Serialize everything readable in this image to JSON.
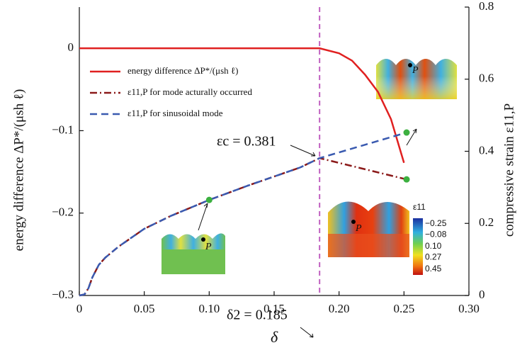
{
  "chart_data": {
    "type": "line",
    "xlabel": "δ",
    "ylabel": "energy difference ΔP*/(μsh ℓ)",
    "y2label": "compressive strain ε11,P",
    "xlim": [
      0,
      0.3
    ],
    "xticks": [
      0,
      0.05,
      {
        "value": 0.1,
        "label": "0.10"
      },
      0.15,
      {
        "value": 0.2,
        "label": "0.20"
      },
      0.25,
      {
        "value": 0.3,
        "label": "0.30"
      }
    ],
    "ylim": [
      -0.3,
      0.05
    ],
    "yticks": [
      {
        "value": -0.3,
        "label": "−0.3"
      },
      {
        "value": -0.2,
        "label": "−0.2"
      },
      {
        "value": -0.1,
        "label": "−0.1"
      },
      0
    ],
    "y2lim": [
      0,
      0.8
    ],
    "y2ticks": [
      0,
      0.2,
      0.4,
      0.6,
      0.8
    ],
    "series": [
      {
        "name": "energy difference ΔP*/(μsh ℓ)",
        "color": "#e02020",
        "style": "solid",
        "x": [
          0,
          0.05,
          0.1,
          0.15,
          0.185,
          0.2,
          0.21,
          0.22,
          0.23,
          0.24,
          0.25
        ],
        "values": [
          0,
          0,
          0,
          0,
          0,
          -0.006,
          -0.015,
          -0.032,
          -0.053,
          -0.086,
          -0.139
        ]
      },
      {
        "name": "ε11,P for mode acturally occurred",
        "color": "#8b1a1a",
        "style": "dashdot",
        "axis": "y2",
        "x": [
          0,
          0.004,
          0.007,
          0.01,
          0.015,
          0.02,
          0.03,
          0.05,
          0.07,
          0.1,
          0.13,
          0.15,
          0.17,
          0.185,
          0.252
        ],
        "values": [
          0,
          0.003,
          0.02,
          0.05,
          0.085,
          0.105,
          0.135,
          0.185,
          0.22,
          0.265,
          0.305,
          0.33,
          0.355,
          0.381,
          0.322
        ]
      },
      {
        "name": "ε11,P for sinusoidal mode",
        "color": "#3a5ab0",
        "style": "dashed",
        "axis": "y2",
        "x": [
          0,
          0.004,
          0.007,
          0.01,
          0.015,
          0.02,
          0.03,
          0.05,
          0.07,
          0.1,
          0.13,
          0.15,
          0.17,
          0.185,
          0.252
        ],
        "values": [
          0,
          0.003,
          0.02,
          0.05,
          0.085,
          0.105,
          0.135,
          0.185,
          0.22,
          0.265,
          0.305,
          0.33,
          0.355,
          0.381,
          0.452
        ]
      }
    ],
    "markers": {
      "color": "#3cb040",
      "x": [
        0.1,
        0.252,
        0.252
      ],
      "values": [
        0.265,
        0.452,
        0.322
      ]
    },
    "vline": {
      "x": 0.185,
      "color": "#c060c0"
    },
    "annotations": [
      "εc = 0.381",
      "δ2 = 0.185"
    ],
    "inset_labels": [
      "P",
      "P",
      "P"
    ],
    "colorbar": {
      "title": "ε11",
      "ticks": [
        {
          "value": -0.25,
          "label": "−0.25"
        },
        {
          "value": -0.08,
          "label": "−0.08"
        },
        {
          "value": 0.1,
          "label": "0.10"
        },
        {
          "value": 0.27,
          "label": "0.27"
        },
        {
          "value": 0.45,
          "label": "0.45"
        }
      ]
    }
  }
}
